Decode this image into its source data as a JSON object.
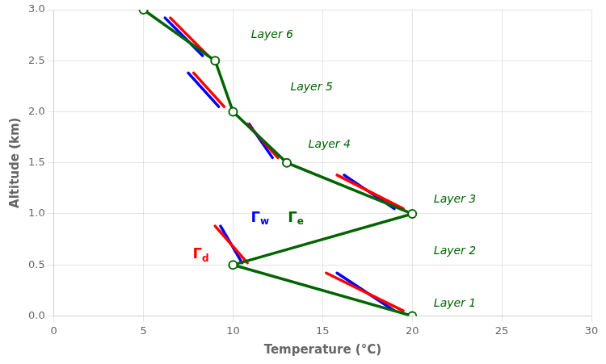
{
  "chart_data": {
    "type": "line",
    "xlabel": "Temperature (°C)",
    "ylabel": "Altitude (km)",
    "xlim": [
      0,
      30
    ],
    "ylim": [
      0,
      3
    ],
    "xticks": [
      0,
      5,
      10,
      15,
      20,
      25,
      30
    ],
    "yticks": [
      {
        "value": 0,
        "label": "0.0"
      },
      0.5,
      {
        "value": 1,
        "label": "1.0"
      },
      1.5,
      {
        "value": 2,
        "label": "2.0"
      },
      2.5,
      {
        "value": 3,
        "label": "3.0"
      }
    ],
    "grid": true,
    "series": [
      {
        "color": "red",
        "marker": "none",
        "x": [
          19.5,
          15.2
        ],
        "values": [
          0.05,
          0.42
        ]
      },
      {
        "color": "red",
        "marker": "none",
        "x": [
          10.8,
          9.0
        ],
        "values": [
          0.52,
          0.88
        ]
      },
      {
        "color": "red",
        "marker": "none",
        "x": [
          19.5,
          15.8
        ],
        "values": [
          1.05,
          1.38
        ]
      },
      {
        "color": "red",
        "marker": "none",
        "x": [
          12.5,
          10.8
        ],
        "values": [
          1.55,
          1.88
        ]
      },
      {
        "color": "red",
        "marker": "none",
        "x": [
          9.5,
          7.8
        ],
        "values": [
          2.05,
          2.38
        ]
      },
      {
        "color": "red",
        "marker": "none",
        "x": [
          8.6,
          6.5
        ],
        "values": [
          2.55,
          2.92
        ]
      },
      {
        "color": "blue",
        "marker": "none",
        "x": [
          19.0,
          15.8
        ],
        "values": [
          0.05,
          0.42
        ]
      },
      {
        "color": "blue",
        "marker": "none",
        "x": [
          10.5,
          9.3
        ],
        "values": [
          0.52,
          0.88
        ]
      },
      {
        "color": "blue",
        "marker": "none",
        "x": [
          19.0,
          16.2
        ],
        "values": [
          1.05,
          1.38
        ]
      },
      {
        "color": "blue",
        "marker": "none",
        "x": [
          12.2,
          10.9
        ],
        "values": [
          1.55,
          1.88
        ]
      },
      {
        "color": "blue",
        "marker": "none",
        "x": [
          9.2,
          7.5
        ],
        "values": [
          2.05,
          2.38
        ]
      },
      {
        "color": "blue",
        "marker": "none",
        "x": [
          8.3,
          6.2
        ],
        "values": [
          2.55,
          2.92
        ]
      },
      {
        "color": "#006400",
        "marker": "circle",
        "x": [
          20,
          10,
          20,
          13,
          10,
          9,
          5
        ],
        "values": [
          0.0,
          0.5,
          1.0,
          1.5,
          2.0,
          2.5,
          3.0
        ]
      }
    ],
    "annotations": [
      {
        "text": "Layer 1",
        "x": 21.2,
        "y": 0.06,
        "color": "#006400"
      },
      {
        "text": "Layer 2",
        "x": 21.2,
        "y": 0.58,
        "color": "#006400"
      },
      {
        "text": "Layer 3",
        "x": 21.2,
        "y": 1.08,
        "color": "#006400"
      },
      {
        "text": "Layer 4",
        "x": 14.2,
        "y": 1.62,
        "color": "#006400"
      },
      {
        "text": "Layer 5",
        "x": 13.2,
        "y": 2.18,
        "color": "#006400"
      },
      {
        "text": "Layer 6",
        "x": 11.0,
        "y": 2.7,
        "color": "#006400"
      },
      {
        "text": "Γd",
        "x": 8.2,
        "y": 0.6,
        "color": "red"
      },
      {
        "text": "Γw",
        "x": 11.5,
        "y": 0.96,
        "color": "blue"
      },
      {
        "text": "Γe",
        "x": 13.5,
        "y": 0.96,
        "color": "#006400"
      }
    ]
  }
}
